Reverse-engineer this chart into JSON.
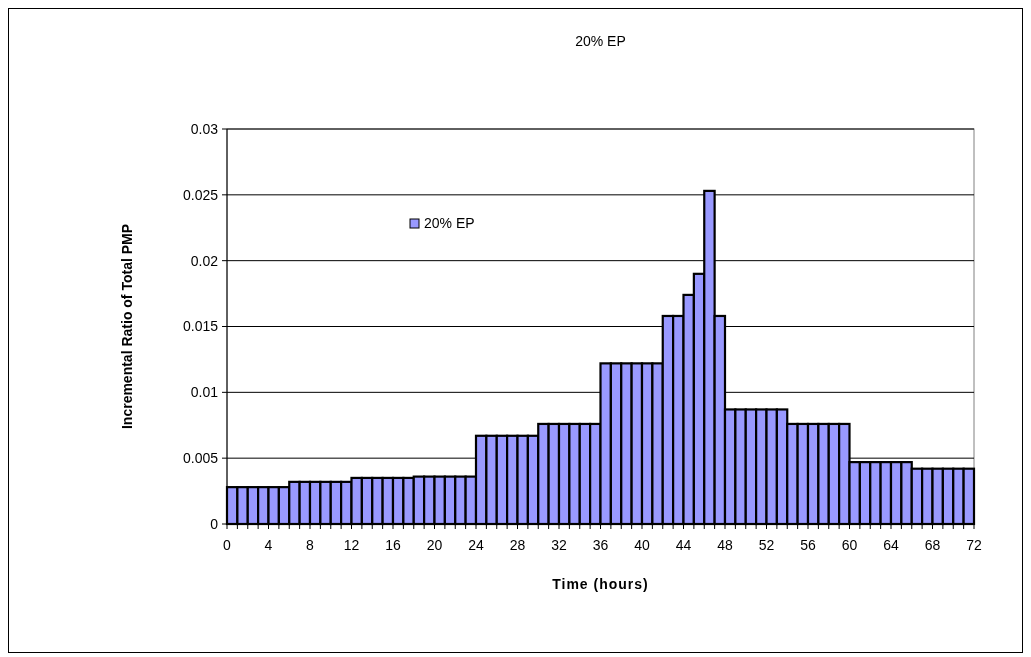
{
  "chart_data": {
    "type": "histogram",
    "title": "20% EP",
    "xlabel": "Time (hours)",
    "ylabel": "Incremental Ratio of Total PMP",
    "bins": [
      0,
      1,
      2,
      3,
      4,
      5,
      6,
      7,
      8,
      9,
      10,
      11,
      12,
      13,
      14,
      15,
      16,
      17,
      18,
      19,
      20,
      21,
      22,
      23,
      24,
      25,
      26,
      27,
      28,
      29,
      30,
      31,
      32,
      33,
      34,
      35,
      36,
      37,
      38,
      39,
      40,
      41,
      42,
      43,
      44,
      45,
      46,
      47,
      48,
      49,
      50,
      51,
      52,
      53,
      54,
      55,
      56,
      57,
      58,
      59,
      60,
      61,
      62,
      63,
      64,
      65,
      66,
      67,
      68,
      69,
      70,
      71,
      72
    ],
    "series": [
      {
        "name": "20% EP",
        "color": "#9999ff",
        "values": [
          0.0028,
          0.0028,
          0.0028,
          0.0028,
          0.0028,
          0.0028,
          0.0032,
          0.0032,
          0.0032,
          0.0032,
          0.0032,
          0.0032,
          0.0035,
          0.0035,
          0.0035,
          0.0035,
          0.0035,
          0.0035,
          0.0036,
          0.0036,
          0.0036,
          0.0036,
          0.0036,
          0.0036,
          0.0067,
          0.0067,
          0.0067,
          0.0067,
          0.0067,
          0.0067,
          0.0076,
          0.0076,
          0.0076,
          0.0076,
          0.0076,
          0.0076,
          0.0122,
          0.0122,
          0.0122,
          0.0122,
          0.0122,
          0.0122,
          0.0158,
          0.0158,
          0.0174,
          0.019,
          0.0253,
          0.0158,
          0.0087,
          0.0087,
          0.0087,
          0.0087,
          0.0087,
          0.0087,
          0.0076,
          0.0076,
          0.0076,
          0.0076,
          0.0076,
          0.0076,
          0.0047,
          0.0047,
          0.0047,
          0.0047,
          0.0047,
          0.0047,
          0.0042,
          0.0042,
          0.0042,
          0.0042,
          0.0042,
          0.0042
        ]
      }
    ],
    "xlim": [
      0,
      72
    ],
    "xticks": [
      0,
      {
        "value": 1,
        "label": null
      },
      {
        "value": 2,
        "label": null
      },
      {
        "value": 3,
        "label": null
      },
      4,
      {
        "value": 5,
        "label": null
      },
      {
        "value": 6,
        "label": null
      },
      {
        "value": 7,
        "label": null
      },
      8,
      {
        "value": 9,
        "label": null
      },
      {
        "value": 10,
        "label": null
      },
      {
        "value": 11,
        "label": null
      },
      12,
      {
        "value": 13,
        "label": null
      },
      {
        "value": 14,
        "label": null
      },
      {
        "value": 15,
        "label": null
      },
      16,
      {
        "value": 17,
        "label": null
      },
      {
        "value": 18,
        "label": null
      },
      {
        "value": 19,
        "label": null
      },
      20,
      {
        "value": 21,
        "label": null
      },
      {
        "value": 22,
        "label": null
      },
      {
        "value": 23,
        "label": null
      },
      24,
      {
        "value": 25,
        "label": null
      },
      {
        "value": 26,
        "label": null
      },
      {
        "value": 27,
        "label": null
      },
      28,
      {
        "value": 29,
        "label": null
      },
      {
        "value": 30,
        "label": null
      },
      {
        "value": 31,
        "label": null
      },
      32,
      {
        "value": 33,
        "label": null
      },
      {
        "value": 34,
        "label": null
      },
      {
        "value": 35,
        "label": null
      },
      36,
      {
        "value": 37,
        "label": null
      },
      {
        "value": 38,
        "label": null
      },
      {
        "value": 39,
        "label": null
      },
      40,
      {
        "value": 41,
        "label": null
      },
      {
        "value": 42,
        "label": null
      },
      {
        "value": 43,
        "label": null
      },
      44,
      {
        "value": 45,
        "label": null
      },
      {
        "value": 46,
        "label": null
      },
      {
        "value": 47,
        "label": null
      },
      48,
      {
        "value": 49,
        "label": null
      },
      {
        "value": 50,
        "label": null
      },
      {
        "value": 51,
        "label": null
      },
      52,
      {
        "value": 53,
        "label": null
      },
      {
        "value": 54,
        "label": null
      },
      {
        "value": 55,
        "label": null
      },
      56,
      {
        "value": 57,
        "label": null
      },
      {
        "value": 58,
        "label": null
      },
      {
        "value": 59,
        "label": null
      },
      60,
      {
        "value": 61,
        "label": null
      },
      {
        "value": 62,
        "label": null
      },
      {
        "value": 63,
        "label": null
      },
      64,
      {
        "value": 65,
        "label": null
      },
      {
        "value": 66,
        "label": null
      },
      {
        "value": 67,
        "label": null
      },
      68,
      {
        "value": 69,
        "label": null
      },
      {
        "value": 70,
        "label": null
      },
      {
        "value": 71,
        "label": null
      },
      72
    ],
    "ylim": [
      0,
      0.03
    ],
    "yticks": [
      0,
      0.005,
      0.01,
      0.015,
      0.02,
      0.025,
      0.03
    ],
    "grid": "y",
    "legend": "top left"
  }
}
